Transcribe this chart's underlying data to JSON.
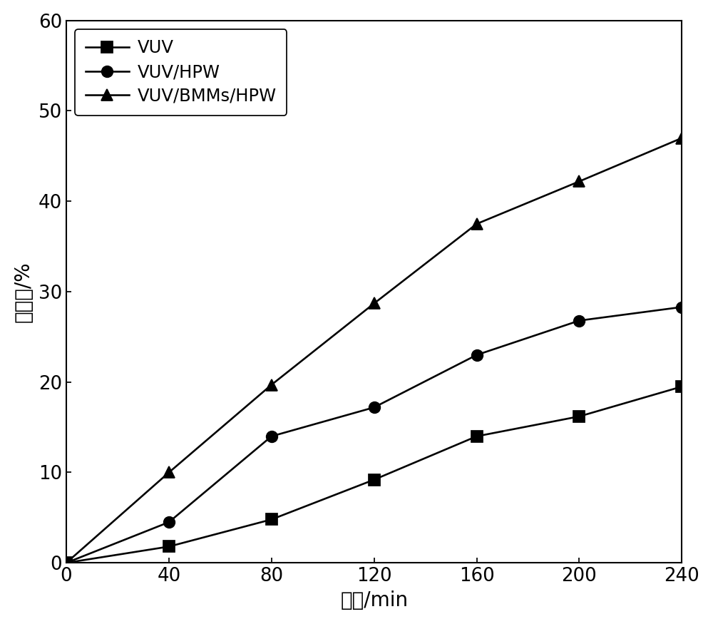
{
  "x": [
    0,
    40,
    80,
    120,
    160,
    200,
    240
  ],
  "vuv": [
    0,
    1.8,
    4.8,
    9.2,
    14.0,
    16.2,
    19.5
  ],
  "vuv_hpw": [
    0,
    4.5,
    14.0,
    17.2,
    23.0,
    26.8,
    28.3
  ],
  "vuv_bmms_hpw": [
    0,
    10.0,
    19.7,
    28.7,
    37.5,
    42.2,
    47.0
  ],
  "xlabel": "时间/min",
  "ylabel": "脱氟率/%",
  "legend": [
    "VUV",
    "VUV/HPW",
    "VUV/BMMs/HPW"
  ],
  "xlim": [
    0,
    240
  ],
  "ylim": [
    0,
    60
  ],
  "xticks": [
    0,
    40,
    80,
    120,
    160,
    200,
    240
  ],
  "yticks": [
    0,
    10,
    20,
    30,
    40,
    50,
    60
  ],
  "line_color": "#000000",
  "marker_vuv": "s",
  "marker_hpw": "o",
  "marker_bmms": "^",
  "markersize": 9,
  "linewidth": 1.5,
  "title_fontsize": 16,
  "label_fontsize": 16,
  "tick_fontsize": 15,
  "legend_fontsize": 14,
  "background_color": "#ffffff"
}
